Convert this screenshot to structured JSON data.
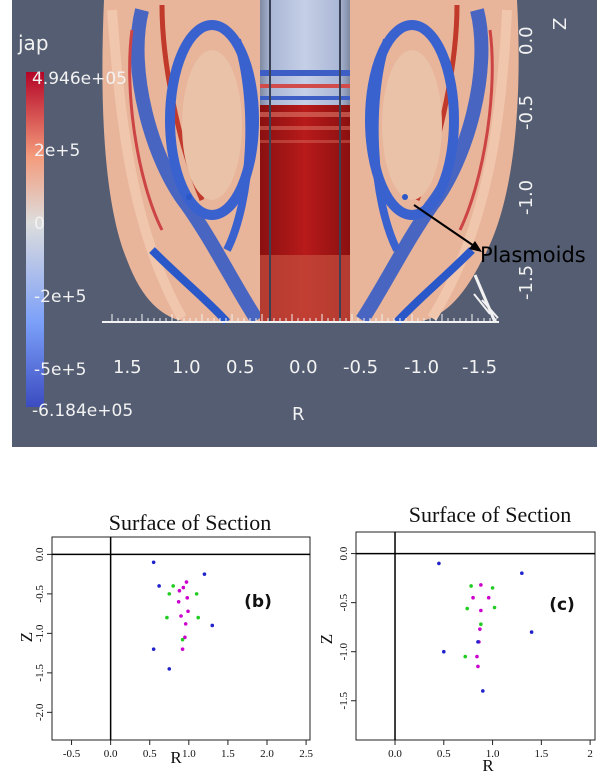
{
  "top_panel": {
    "colorbar": {
      "field": "jap",
      "max_label": "4.946e+05",
      "min_label": "-6.184e+05",
      "tick_labels": [
        "2e+5",
        "0",
        "-2e+5",
        "-5e+5"
      ],
      "colors": [
        "#3b4cc0",
        "#7b9ff9",
        "#dddddd",
        "#f49a7b",
        "#b40426"
      ]
    },
    "x_axis": {
      "label": "R",
      "tick_labels": [
        "1.5",
        "1.0",
        "0.5",
        "0.0",
        "-0.5",
        "-1.0",
        "-1.5"
      ]
    },
    "z_axis": {
      "label": "Z",
      "tick_labels": [
        "0.0",
        "-0.5",
        "-1.0",
        "-1.5"
      ]
    },
    "annotation": "Plasmoids",
    "background": "#545d72"
  },
  "chart_data": [
    {
      "type": "scatter",
      "title": "Surface of Section",
      "panel_label": "(b)",
      "xlabel": "R",
      "ylabel": "Z",
      "xlim": [
        -0.75,
        2.55
      ],
      "ylim": [
        -2.35,
        0.22
      ],
      "xticks": [
        "-0.5",
        "0.0",
        "0.5",
        "1.0",
        "1.5",
        "2.0",
        "2.5"
      ],
      "yticks": [
        "0.0",
        "-0.5",
        "-1.0",
        "-1.5",
        "-2.0"
      ],
      "reference_lines": {
        "x": 0.0,
        "y": 0.0
      },
      "series": [
        {
          "color": "#cc00cc",
          "points": [
            [
              0.93,
              -0.42
            ],
            [
              0.98,
              -0.55
            ],
            [
              0.99,
              -0.72
            ],
            [
              0.96,
              -0.88
            ],
            [
              0.9,
              -0.78
            ],
            [
              0.87,
              -0.6
            ],
            [
              0.88,
              -0.46
            ],
            [
              0.95,
              -1.05
            ],
            [
              0.92,
              -1.2
            ],
            [
              0.97,
              -0.35
            ]
          ]
        },
        {
          "color": "#22cc22",
          "points": [
            [
              0.8,
              -0.4
            ],
            [
              1.1,
              -0.5
            ],
            [
              1.12,
              -0.8
            ],
            [
              0.92,
              -1.08
            ],
            [
              0.72,
              -0.8
            ],
            [
              0.75,
              -0.5
            ]
          ]
        },
        {
          "color": "#2222cc",
          "points": [
            [
              0.55,
              -0.1
            ],
            [
              1.2,
              -0.25
            ],
            [
              1.3,
              -0.9
            ],
            [
              0.75,
              -1.45
            ],
            [
              0.55,
              -1.2
            ],
            [
              0.62,
              -0.4
            ]
          ]
        }
      ]
    },
    {
      "type": "scatter",
      "title": "Surface of Section",
      "panel_label": "(c)",
      "xlabel": "R",
      "ylabel": "Z",
      "xlim": [
        -0.4,
        2.05
      ],
      "ylim": [
        -1.9,
        0.22
      ],
      "xticks": [
        "0.0",
        "0.5",
        "1.0",
        "1.5",
        "2"
      ],
      "yticks": [
        "0.0",
        "-0.5",
        "-1.0",
        "-1.5"
      ],
      "reference_lines": {
        "x": 0.0,
        "y": 0.0
      },
      "series": [
        {
          "color": "#cc00cc",
          "points": [
            [
              0.88,
              -0.32
            ],
            [
              0.96,
              -0.45
            ],
            [
              0.88,
              -0.58
            ],
            [
              0.8,
              -0.45
            ],
            [
              0.87,
              -0.77
            ],
            [
              0.86,
              -0.9
            ],
            [
              0.84,
              -1.05
            ],
            [
              0.85,
              -1.15
            ]
          ]
        },
        {
          "color": "#22cc22",
          "points": [
            [
              0.78,
              -0.33
            ],
            [
              1.0,
              -0.35
            ],
            [
              1.02,
              -0.55
            ],
            [
              0.88,
              -0.72
            ],
            [
              0.74,
              -0.56
            ],
            [
              0.72,
              -1.05
            ]
          ]
        },
        {
          "color": "#2222cc",
          "points": [
            [
              0.45,
              -0.1
            ],
            [
              1.3,
              -0.2
            ],
            [
              1.4,
              -0.8
            ],
            [
              0.9,
              -1.4
            ],
            [
              0.5,
              -1.0
            ],
            [
              0.85,
              -0.9
            ]
          ]
        }
      ]
    }
  ]
}
